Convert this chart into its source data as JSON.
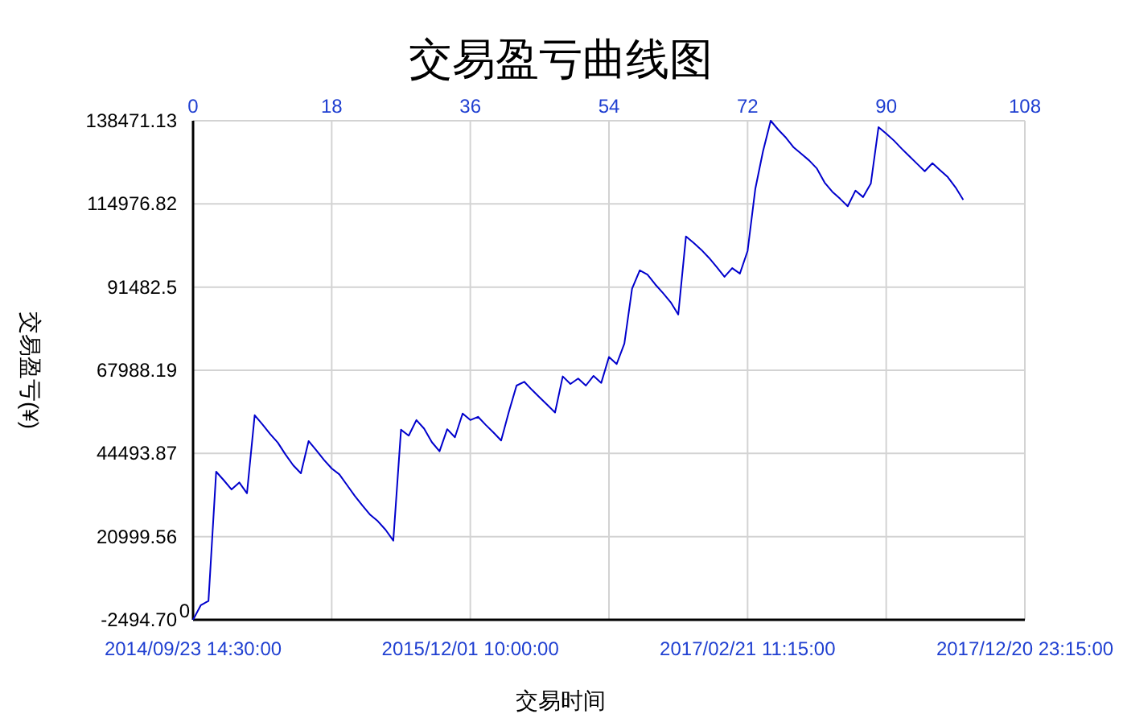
{
  "chart_data": {
    "type": "line",
    "title": "交易盈亏曲线图",
    "xlabel": "交易时间",
    "ylabel": "交易盈亏(¥)",
    "x": [
      0,
      1,
      2,
      3,
      4,
      5,
      6,
      7,
      8,
      9,
      10,
      11,
      12,
      13,
      14,
      15,
      16,
      17,
      18,
      19,
      20,
      21,
      22,
      23,
      24,
      25,
      26,
      27,
      28,
      29,
      30,
      31,
      32,
      33,
      34,
      35,
      36,
      37,
      38,
      39,
      40,
      41,
      42,
      43,
      44,
      45,
      46,
      47,
      48,
      49,
      50,
      51,
      52,
      53,
      54,
      55,
      56,
      57,
      58,
      59,
      60,
      61,
      62,
      63,
      64,
      65,
      66,
      67,
      68,
      69,
      70,
      71,
      72,
      73,
      74,
      75,
      76,
      77,
      78,
      79,
      80,
      81,
      82,
      83,
      84,
      85,
      86,
      87,
      88,
      89,
      90,
      91,
      92,
      93,
      94,
      95,
      96,
      97,
      98,
      99,
      100
    ],
    "series": [
      {
        "color": "#0000cc",
        "values": [
          -2494.7,
          1612,
          2829,
          39333,
          36900,
          34314,
          36292,
          33249,
          55304,
          52718,
          49980,
          47547,
          44200,
          41159,
          38877,
          48003,
          45417,
          42680,
          40246,
          38573,
          35530,
          32489,
          29751,
          27165,
          25340,
          22907,
          19864,
          51197,
          49524,
          53934,
          51501,
          47699,
          45113,
          51349,
          49068,
          55760,
          53934,
          54847,
          52566,
          50436,
          48155,
          56216,
          63670,
          64735,
          62453,
          60324,
          58194,
          56064,
          66255,
          64126,
          65647,
          63670,
          66407,
          64430,
          71731,
          69753,
          75533,
          91047,
          96219,
          95002,
          92264,
          89831,
          87245,
          83747,
          105801,
          103976,
          102000,
          99718,
          97132,
          94394,
          96828,
          95307,
          101695,
          119186,
          129833,
          138471.13,
          135917,
          133636,
          130898,
          129073,
          127248,
          124966,
          121012,
          118426,
          116449,
          114319,
          118730,
          116905,
          120708,
          136677,
          134852,
          132875,
          130593,
          128464,
          126335,
          124205,
          126487,
          124510,
          122532,
          119642,
          116145
        ]
      }
    ],
    "xlim": [
      0,
      108
    ],
    "xticks": [
      0,
      18,
      36,
      54,
      72,
      90,
      108
    ],
    "annotations": [
      "2014/09/23 14:30:00",
      "2015/12/01 10:00:00",
      "2017/02/21 11:15:00",
      "2017/12/20 23:15:00",
      {
        "text": "0",
        "x": 0,
        "y": 0
      }
    ],
    "ylim": [
      -2494.7,
      138471.13
    ],
    "yticks": [
      {
        "value": -2494.7,
        "label": "-2494.70"
      },
      20999.56,
      44493.87,
      67988.19,
      91482.5,
      114976.82,
      138471.13
    ],
    "grid": true,
    "marker": "none",
    "line_style": "solid"
  }
}
